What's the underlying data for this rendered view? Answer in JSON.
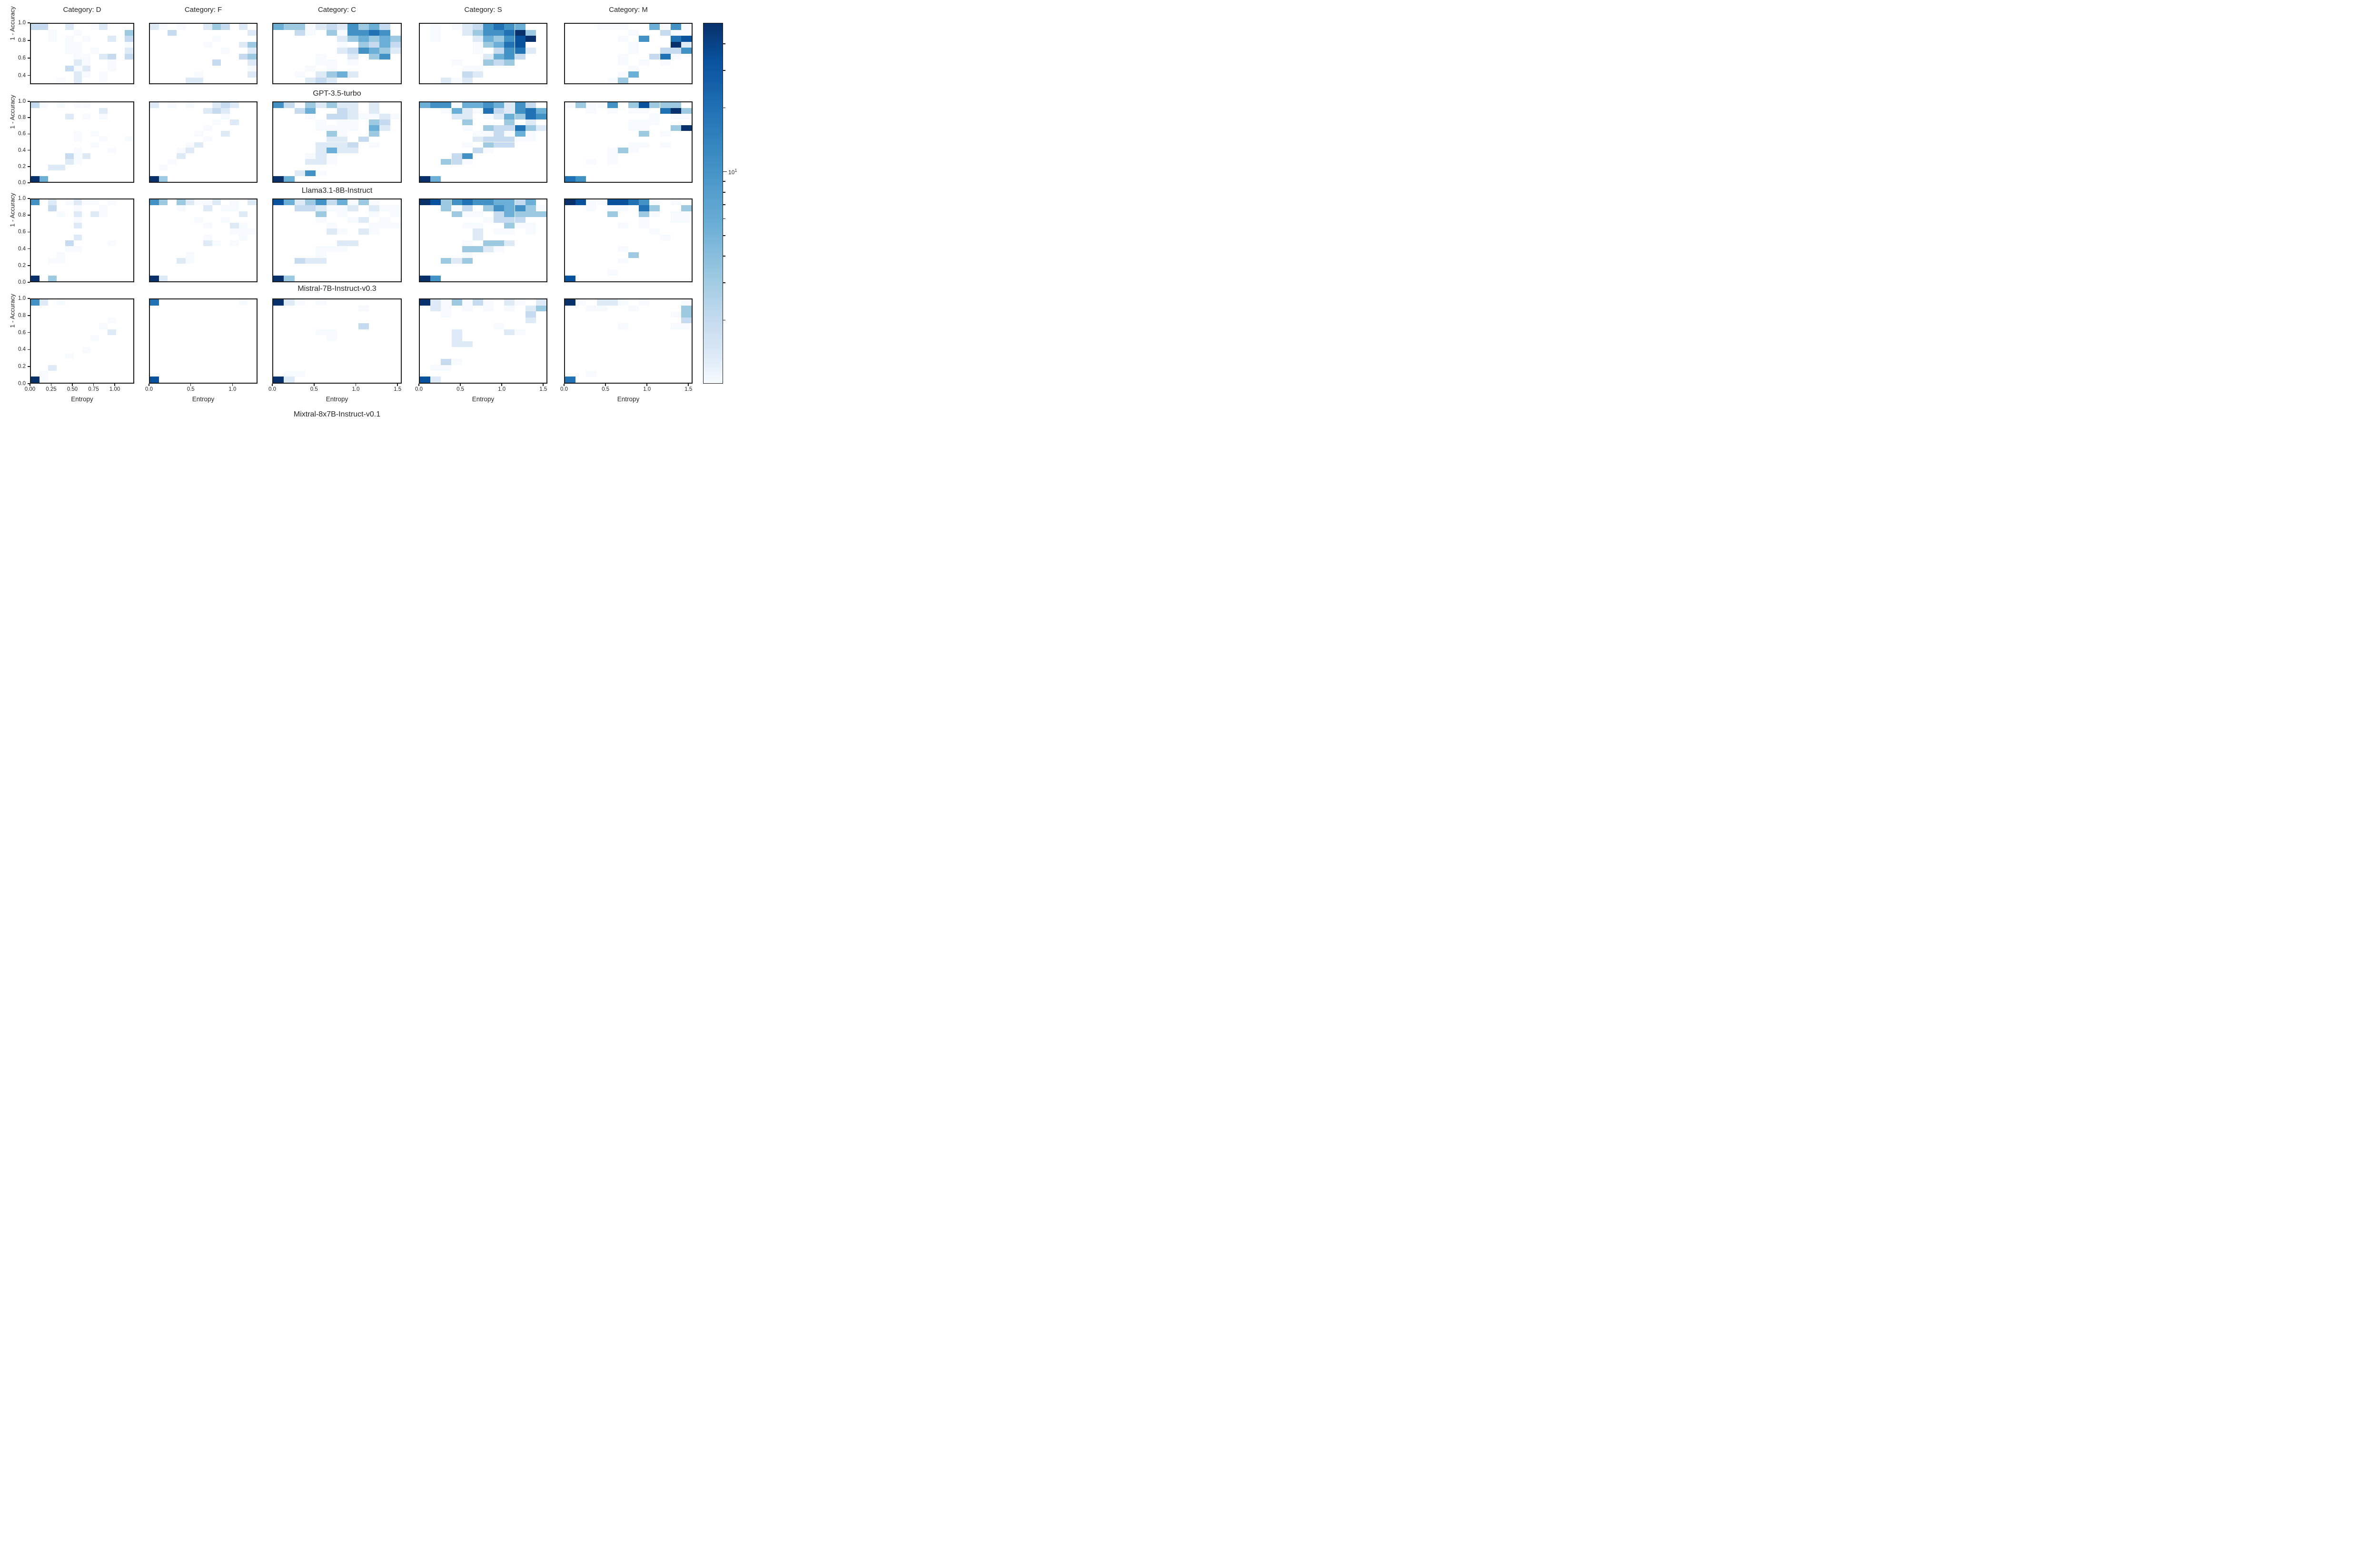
{
  "figure": {
    "column_titles": [
      "Category: D",
      "Category: F",
      "Category: C",
      "Category: S",
      "Category: M"
    ],
    "row_titles": [
      "GPT-3.5-turbo",
      "Llama3.1-8B-Instruct",
      "Mistral-7B-Instruct-v0.3",
      "Mixtral-8x7B-Instruct-v0.1"
    ],
    "ylabel": "1 - Accuracy",
    "xlabel": "Entropy",
    "colorbar": {
      "major_tick_base": "10",
      "major_tick_exponent": "1",
      "scale": "log",
      "vmin": 1,
      "vmax": 50
    }
  },
  "chart_data": {
    "type": "heatmap",
    "title": "",
    "xlabel": "Entropy",
    "ylabel": "1 - Accuracy",
    "legend_position": "right-colorbar",
    "grid": "off",
    "colormap": "Blues, log-scale counts, colorbar major tick 10^1",
    "palette": [
      "#ffffff",
      "#f7fbff",
      "#deebf7",
      "#c6dbef",
      "#9ecae1",
      "#6baed6",
      "#4292c6",
      "#2171b5",
      "#08519c",
      "#08306b"
    ],
    "columns": [
      {
        "label": "Category: D",
        "xlim": [
          0,
          1.23
        ],
        "xticks": [
          0,
          0.25,
          0.5,
          0.75,
          1.0
        ],
        "xtick_labels": [
          "0.00",
          "0.25",
          "0.50",
          "0.75",
          "1.00"
        ]
      },
      {
        "label": "Category: F",
        "xlim": [
          0,
          1.3
        ],
        "xticks": [
          0,
          0.5,
          1.0
        ],
        "xtick_labels": [
          "0.0",
          "0.5",
          "1.0"
        ]
      },
      {
        "label": "Category: C",
        "xlim": [
          0,
          1.55
        ],
        "xticks": [
          0,
          0.5,
          1.0,
          1.5
        ],
        "xtick_labels": [
          "0.0",
          "0.5",
          "1.0",
          "1.5"
        ]
      },
      {
        "label": "Category: S",
        "xlim": [
          0,
          1.55
        ],
        "xticks": [
          0,
          0.5,
          1.0,
          1.5
        ],
        "xtick_labels": [
          "0.0",
          "0.5",
          "1.0",
          "1.5"
        ]
      },
      {
        "label": "Category: M",
        "xlim": [
          0,
          1.55
        ],
        "xticks": [
          0,
          0.5,
          1.0,
          1.5
        ],
        "xtick_labels": [
          "0.0",
          "0.5",
          "1.0",
          "1.5"
        ]
      }
    ],
    "rows": [
      {
        "label": "GPT-3.5-turbo",
        "ylim": [
          0.3,
          1.0
        ],
        "yticks": [
          1.0,
          0.8,
          0.6,
          0.4
        ],
        "ytick_labels": [
          "1.0",
          "0.8",
          "0.6",
          "0.4"
        ]
      },
      {
        "label": "Llama3.1-8B-Instruct",
        "ylim": [
          0.0,
          1.0
        ],
        "yticks": [
          1.0,
          0.8,
          0.6,
          0.4,
          0.2,
          0.0
        ],
        "ytick_labels": [
          "1.0",
          "0.8",
          "0.6",
          "0.4",
          "0.2",
          "0.0"
        ]
      },
      {
        "label": "Mistral-7B-Instruct-v0.3",
        "ylim": [
          0.0,
          1.0
        ],
        "yticks": [
          1.0,
          0.8,
          0.6,
          0.4,
          0.2,
          0.0
        ],
        "ytick_labels": [
          "1.0",
          "0.8",
          "0.6",
          "0.4",
          "0.2",
          "0.0"
        ]
      },
      {
        "label": "Mixtral-8x7B-Instruct-v0.1",
        "ylim": [
          0.0,
          1.0
        ],
        "yticks": [
          1.0,
          0.8,
          0.6,
          0.4,
          0.2,
          0.0
        ],
        "ytick_labels": [
          "1.0",
          "0.8",
          "0.6",
          "0.4",
          "0.2",
          "0.0"
        ]
      }
    ],
    "intensity_note": "matrix digits 0-9 index into palette; rows listed top (y=1.0) to bottom",
    "panels": [
      {
        "row": 0,
        "col": 0,
        "matrix": [
          "330020012000",
          "001001000004",
          "001010100203",
          "000011000001",
          "000011010002",
          "000001102303",
          "000002100100",
          "000031200100",
          "000002101000",
          "000102001000"
        ]
      },
      {
        "row": 0,
        "col": 1,
        "matrix": [
          "210100243020",
          "003000000002",
          "000000010000",
          "000000100024",
          "000000001002",
          "000000000034",
          "000000030002",
          "000000000001",
          "000001000002",
          "000022000000"
        ]
      },
      {
        "row": 0,
        "col": 2,
        "matrix": [
          "544123264530",
          "003104166760",
          "000000245454",
          "000000104353",
          "000000236542",
          "000010020460",
          "000011010000",
          "000101000000",
          "001024520000",
          "000232000000"
        ]
      },
      {
        "row": 0,
        "col": 3,
        "matrix": [
          "010123676500",
          "010024667940",
          "010002546890",
          "000001457800",
          "000001036720",
          "000000256300",
          "000100434000",
          "000011000000",
          "000032000000",
          "002120000000"
        ]
      },
      {
        "row": 0,
        "col": 4,
        "matrix": [
          "000111005161",
          "000000100311",
          "000001060078",
          "000000100092",
          "000000100336",
          "000001003710",
          "000001010100",
          "000000100000",
          "000001500000",
          "000014000000"
        ]
      },
      {
        "row": 1,
        "col": 0,
        "matrix": [
          "310101100000",
          "000000002000",
          "000020101000",
          "000000000000",
          "000000000000",
          "000001010000",
          "000001001001",
          "000000010000",
          "000001000100",
          "000031200000",
          "000021000000",
          "002200000000",
          "000000000000",
          "950000000000"
        ]
      },
      {
        "row": 1,
        "col": 1,
        "matrix": [
          "201010023200",
          "000000232000",
          "000000001000",
          "000000010200",
          "000000100000",
          "000001002000",
          "000000100000",
          "000012000000",
          "000120000000",
          "000200000000",
          "001000000000",
          "010000000000",
          "000000000000",
          "940000000000"
        ]
      },
      {
        "row": 1,
        "col": 2,
        "matrix": [
          "631424220200",
          "003500320200",
          "000103321121",
          "000010110430",
          "000011110520",
          "000004100400",
          "000002203000",
          "000022230100",
          "000025220000",
          "000121000000",
          "000221000000",
          "000000000000",
          "002610000000",
          "950000000000"
        ]
      },
      {
        "row": 1,
        "col": 3,
        "matrix": [
          "566155652630",
          "001521732675",
          "000220125476",
          "000040004020",
          "000010433742",
          "000001131510",
          "000002333110",
          "000010433000",
          "000003100000",
          "000360000000",
          "004310000000",
          "000000000000",
          "000000000000",
          "950000000000"
        ]
      },
      {
        "row": 1,
        "col": 4,
        "matrix": [
          "141160484440",
          "001010110794",
          "000000001011",
          "000000111000",
          "000000110049",
          "000000040100",
          "000000000000",
          "000000110100",
          "000014100000",
          "000010000000",
          "001010000000",
          "000000000000",
          "000000000000",
          "760000000000"
        ]
      },
      {
        "row": 2,
        "col": 0,
        "matrix": [
          "602012110100",
          "003001001000",
          "000102021000",
          "000001000000",
          "000002000000",
          "000000000000",
          "000002000000",
          "000030000100",
          "000011000000",
          "000100000000",
          "001100000000",
          "000000000000",
          "000000000000",
          "904000000000"
        ]
      },
      {
        "row": 2,
        "col": 1,
        "matrix": [
          "640421120102",
          "000100201100",
          "000000000020",
          "000001001000",
          "000000100210",
          "000000000111",
          "000000100010",
          "000000210100",
          "000000000000",
          "000010000000",
          "000210000000",
          "000000000000",
          "000000000000",
          "920000000000"
        ]
      },
      {
        "row": 2,
        "col": 2,
        "matrix": [
          "852463514100",
          "003321120211",
          "000040100101",
          "000010012010",
          "000001000111",
          "000002102100",
          "000000000000",
          "000000220000",
          "000011100000",
          "000010000000",
          "003220000000",
          "000000000000",
          "000000000000",
          "940000000000"
        ]
      },
      {
        "row": 2,
        "col": 3,
        "matrix": [
          "984676655350",
          "004130465641",
          "000411035444",
          "000000133300",
          "000011004110",
          "000002011010",
          "000002000000",
          "000010442000",
          "000044210000",
          "000010000000",
          "004240000000",
          "000000000000",
          "000000000000",
          "960000000000"
        ]
      },
      {
        "row": 2,
        "col": 4,
        "matrix": [
          "981188761010",
          "001011074004",
          "000040041011",
          "000000010011",
          "000001010000",
          "000000001000",
          "000000000100",
          "000000000000",
          "000001000000",
          "000000400000",
          "000001000000",
          "000000000000",
          "000010000000",
          "800000000000"
        ]
      },
      {
        "row": 3,
        "col": 0,
        "matrix": [
          "620100000000",
          "000000000000",
          "000000000000",
          "000000000100",
          "000000001000",
          "000000000200",
          "000000010000",
          "000000000000",
          "000000100000",
          "000010000000",
          "000000000000",
          "002000000000",
          "010000000000",
          "910000000000"
        ]
      },
      {
        "row": 3,
        "col": 1,
        "matrix": [
          "700000000010",
          "000000000000",
          "000000000000",
          "000000000000",
          "000000000000",
          "000000000000",
          "000000000000",
          "000000000000",
          "000000000000",
          "000000000000",
          "000000000000",
          "000000000000",
          "000000000000",
          "800000000000"
        ]
      },
      {
        "row": 3,
        "col": 2,
        "matrix": [
          "921010000000",
          "000000001000",
          "000000000000",
          "000000000000",
          "000000003000",
          "000011000000",
          "000001000000",
          "000000000000",
          "000000000000",
          "000000000000",
          "000000000000",
          "000000000000",
          "011000000000",
          "920000000000"
        ]
      },
      {
        "row": 3,
        "col": 3,
        "matrix": [
          "921413102102",
          "021010101024",
          "001000000030",
          "000000000020",
          "000000010000",
          "000200002100",
          "000200000000",
          "000220000000",
          "000000000000",
          "000000000000",
          "003100000000",
          "011000000000",
          "000000000000",
          "820000000000"
        ]
      },
      {
        "row": 3,
        "col": 4,
        "matrix": [
          "910221010001",
          "001100100004",
          "000000000014",
          "000000000003",
          "000001000011",
          "000000000000",
          "000000000000",
          "000000000000",
          "000000000000",
          "000000000000",
          "000000000000",
          "000000000000",
          "001000000000",
          "700000000000"
        ]
      }
    ],
    "colorbar_ticks": {
      "major": [
        10
      ],
      "minor": [
        40,
        30,
        20,
        9,
        8,
        7,
        6,
        5,
        4,
        3,
        2
      ]
    }
  }
}
